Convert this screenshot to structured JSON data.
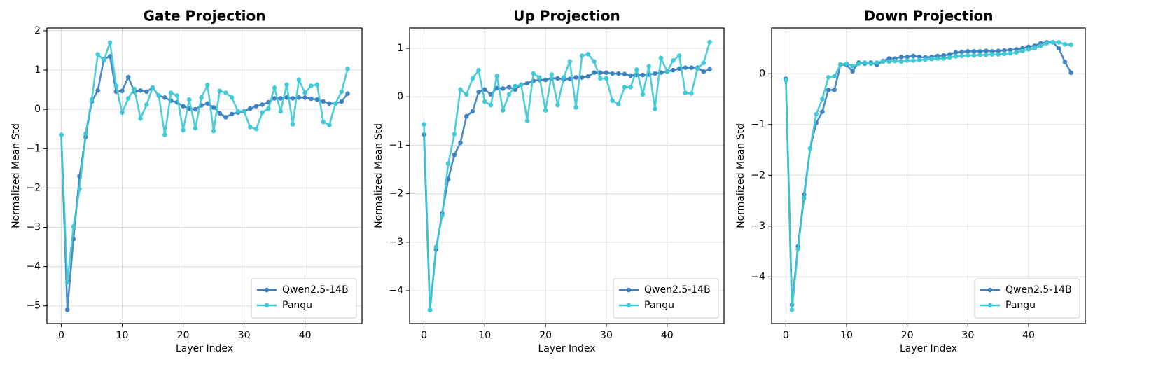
{
  "chart_data": [
    {
      "type": "line",
      "title": "Gate Projection",
      "xlabel": "Layer Index",
      "ylabel": "Normalized Mean Std",
      "x": [
        0,
        1,
        2,
        3,
        4,
        5,
        6,
        7,
        8,
        9,
        10,
        11,
        12,
        13,
        14,
        15,
        16,
        17,
        18,
        19,
        20,
        21,
        22,
        23,
        24,
        25,
        26,
        27,
        28,
        29,
        30,
        31,
        32,
        33,
        34,
        35,
        36,
        37,
        38,
        39,
        40,
        41,
        42,
        43,
        44,
        45,
        46,
        47
      ],
      "series": [
        {
          "name": "Qwen2.5-14B",
          "color": "#3a7fc0",
          "values": [
            -0.65,
            -5.1,
            -3.3,
            -1.7,
            -0.7,
            0.2,
            0.48,
            1.28,
            1.35,
            0.45,
            0.47,
            0.82,
            0.45,
            0.48,
            0.45,
            0.55,
            0.35,
            0.3,
            0.22,
            0.18,
            0.08,
            0.02,
            0.0,
            0.1,
            0.15,
            0.05,
            -0.1,
            -0.2,
            -0.12,
            -0.08,
            -0.05,
            0.02,
            0.08,
            0.12,
            0.18,
            0.28,
            0.28,
            0.3,
            0.28,
            0.3,
            0.3,
            0.27,
            0.25,
            0.2,
            0.15,
            0.15,
            0.2,
            0.4
          ]
        },
        {
          "name": "Pangu",
          "color": "#3cc8d5",
          "values": [
            -0.65,
            -4.4,
            -2.98,
            -2.03,
            -0.62,
            0.25,
            1.4,
            1.25,
            1.7,
            0.6,
            -0.08,
            0.28,
            0.52,
            -0.23,
            0.12,
            0.55,
            0.35,
            -0.65,
            0.42,
            0.35,
            -0.53,
            0.25,
            -0.48,
            0.3,
            0.62,
            -0.55,
            0.47,
            0.42,
            0.3,
            -0.05,
            -0.05,
            -0.45,
            -0.5,
            -0.08,
            0.02,
            0.55,
            -0.05,
            0.63,
            -0.38,
            0.75,
            0.42,
            0.6,
            0.63,
            -0.32,
            -0.4,
            0.15,
            0.45,
            1.03
          ]
        }
      ],
      "xlim": [
        -2.35,
        49.35
      ],
      "xticks": [
        0,
        10,
        20,
        30,
        40
      ],
      "ylim": [
        -5.45,
        2.07
      ],
      "yticks": [
        {
          "value": -5,
          "label": "−5"
        },
        {
          "value": -4,
          "label": "−4"
        },
        {
          "value": -3,
          "label": "−3"
        },
        {
          "value": -2,
          "label": "−2"
        },
        {
          "value": -1,
          "label": "−1"
        },
        0,
        1,
        2
      ],
      "grid": true,
      "legend": "lower right"
    },
    {
      "type": "line",
      "title": "Up Projection",
      "xlabel": "Layer Index",
      "ylabel": "Normalized Mean Std",
      "x": [
        0,
        1,
        2,
        3,
        4,
        5,
        6,
        7,
        8,
        9,
        10,
        11,
        12,
        13,
        14,
        15,
        16,
        17,
        18,
        19,
        20,
        21,
        22,
        23,
        24,
        25,
        26,
        27,
        28,
        29,
        30,
        31,
        32,
        33,
        34,
        35,
        36,
        37,
        38,
        39,
        40,
        41,
        42,
        43,
        44,
        45,
        46,
        47
      ],
      "series": [
        {
          "name": "Qwen2.5-14B",
          "color": "#3a7fc0",
          "values": [
            -0.78,
            -4.4,
            -3.15,
            -2.4,
            -1.7,
            -1.2,
            -0.95,
            -0.4,
            -0.3,
            0.1,
            0.15,
            0.05,
            0.18,
            0.17,
            0.2,
            0.15,
            0.25,
            0.28,
            0.33,
            0.35,
            0.35,
            0.38,
            0.38,
            0.36,
            0.37,
            0.4,
            0.4,
            0.42,
            0.5,
            0.5,
            0.5,
            0.48,
            0.48,
            0.47,
            0.44,
            0.45,
            0.45,
            0.46,
            0.48,
            0.5,
            0.52,
            0.55,
            0.58,
            0.6,
            0.6,
            0.6,
            0.52,
            0.57
          ]
        },
        {
          "name": "Pangu",
          "color": "#3cc8d5",
          "values": [
            -0.57,
            -4.4,
            -3.1,
            -2.45,
            -1.38,
            -0.77,
            0.15,
            0.05,
            0.38,
            0.55,
            -0.1,
            -0.17,
            0.43,
            -0.28,
            0.05,
            0.22,
            0.25,
            -0.5,
            0.48,
            0.4,
            -0.28,
            0.46,
            -0.17,
            0.4,
            0.73,
            -0.22,
            0.85,
            0.88,
            0.73,
            0.38,
            0.38,
            -0.08,
            -0.15,
            0.2,
            0.2,
            0.56,
            0.05,
            0.63,
            -0.25,
            0.8,
            0.52,
            0.75,
            0.85,
            0.08,
            0.07,
            0.58,
            0.7,
            1.13
          ]
        }
      ],
      "xlim": [
        -2.35,
        49.35
      ],
      "xticks": [
        0,
        10,
        20,
        30,
        40
      ],
      "ylim": [
        -4.68,
        1.42
      ],
      "yticks": [
        {
          "value": -4,
          "label": "−4"
        },
        {
          "value": -3,
          "label": "−3"
        },
        {
          "value": -2,
          "label": "−2"
        },
        {
          "value": -1,
          "label": "−1"
        },
        0,
        1
      ],
      "grid": true,
      "legend": "lower right"
    },
    {
      "type": "line",
      "title": "Down Projection",
      "xlabel": "Layer Index",
      "ylabel": "Normalized Mean Std",
      "x": [
        0,
        1,
        2,
        3,
        4,
        5,
        6,
        7,
        8,
        9,
        10,
        11,
        12,
        13,
        14,
        15,
        16,
        17,
        18,
        19,
        20,
        21,
        22,
        23,
        24,
        25,
        26,
        27,
        28,
        29,
        30,
        31,
        32,
        33,
        34,
        35,
        36,
        37,
        38,
        39,
        40,
        41,
        42,
        43,
        44,
        45,
        46,
        47
      ],
      "series": [
        {
          "name": "Qwen2.5-14B",
          "color": "#3a7fc0",
          "values": [
            -0.1,
            -4.55,
            -3.4,
            -2.38,
            -1.47,
            -0.97,
            -0.75,
            -0.32,
            -0.32,
            0.18,
            0.17,
            0.05,
            0.22,
            0.2,
            0.22,
            0.17,
            0.25,
            0.3,
            0.3,
            0.33,
            0.33,
            0.35,
            0.33,
            0.32,
            0.33,
            0.35,
            0.36,
            0.38,
            0.42,
            0.43,
            0.44,
            0.44,
            0.44,
            0.45,
            0.44,
            0.45,
            0.46,
            0.47,
            0.48,
            0.5,
            0.53,
            0.55,
            0.6,
            0.62,
            0.62,
            0.5,
            0.23,
            0.02
          ]
        },
        {
          "name": "Pangu",
          "color": "#3cc8d5",
          "values": [
            -0.13,
            -4.65,
            -3.45,
            -2.45,
            -1.47,
            -0.8,
            -0.5,
            -0.07,
            -0.05,
            0.18,
            0.2,
            0.15,
            0.2,
            0.22,
            0.2,
            0.22,
            0.24,
            0.24,
            0.25,
            0.24,
            0.26,
            0.26,
            0.27,
            0.28,
            0.29,
            0.3,
            0.3,
            0.32,
            0.34,
            0.35,
            0.36,
            0.36,
            0.37,
            0.37,
            0.38,
            0.38,
            0.39,
            0.4,
            0.42,
            0.45,
            0.48,
            0.5,
            0.55,
            0.6,
            0.62,
            0.62,
            0.58,
            0.57
          ]
        }
      ],
      "xlim": [
        -2.35,
        49.35
      ],
      "xticks": [
        0,
        10,
        20,
        30,
        40
      ],
      "ylim": [
        -4.92,
        0.9
      ],
      "yticks": [
        {
          "value": -4,
          "label": "−4"
        },
        {
          "value": -3,
          "label": "−3"
        },
        {
          "value": -2,
          "label": "−2"
        },
        {
          "value": -1,
          "label": "−1"
        },
        0
      ],
      "grid": true,
      "legend": "lower right"
    }
  ]
}
